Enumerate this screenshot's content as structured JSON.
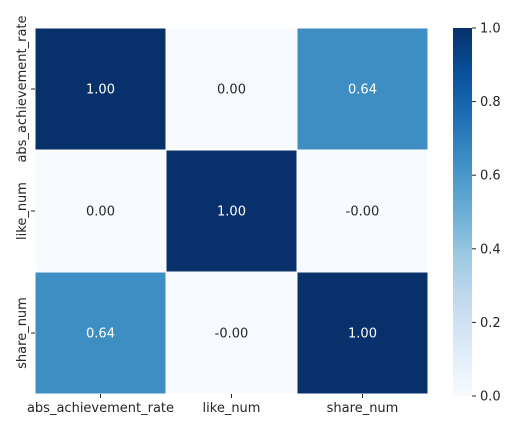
{
  "chart_data": {
    "type": "heatmap",
    "rows": [
      "abs_achievement_rate",
      "like_num",
      "share_num"
    ],
    "columns": [
      "abs_achievement_rate",
      "like_num",
      "share_num"
    ],
    "values": [
      [
        1.0,
        0.0,
        0.64
      ],
      [
        0.0,
        1.0,
        -0.0
      ],
      [
        0.64,
        -0.0,
        1.0
      ]
    ],
    "value_labels": [
      [
        "1.00",
        "0.00",
        "0.64"
      ],
      [
        "0.00",
        "1.00",
        "-0.00"
      ],
      [
        "0.64",
        "-0.00",
        "1.00"
      ]
    ],
    "colormap": "Blues",
    "vmin": 0.0,
    "vmax": 1.0,
    "colorbar_ticks": [
      0.0,
      0.2,
      0.4,
      0.6,
      0.8,
      1.0
    ],
    "colorbar_tick_labels": [
      "0.0",
      "0.2",
      "0.4",
      "0.6",
      "0.8",
      "1.0"
    ],
    "cell_separator_color": "#ffffff",
    "title": "",
    "xlabel": "",
    "ylabel": ""
  }
}
